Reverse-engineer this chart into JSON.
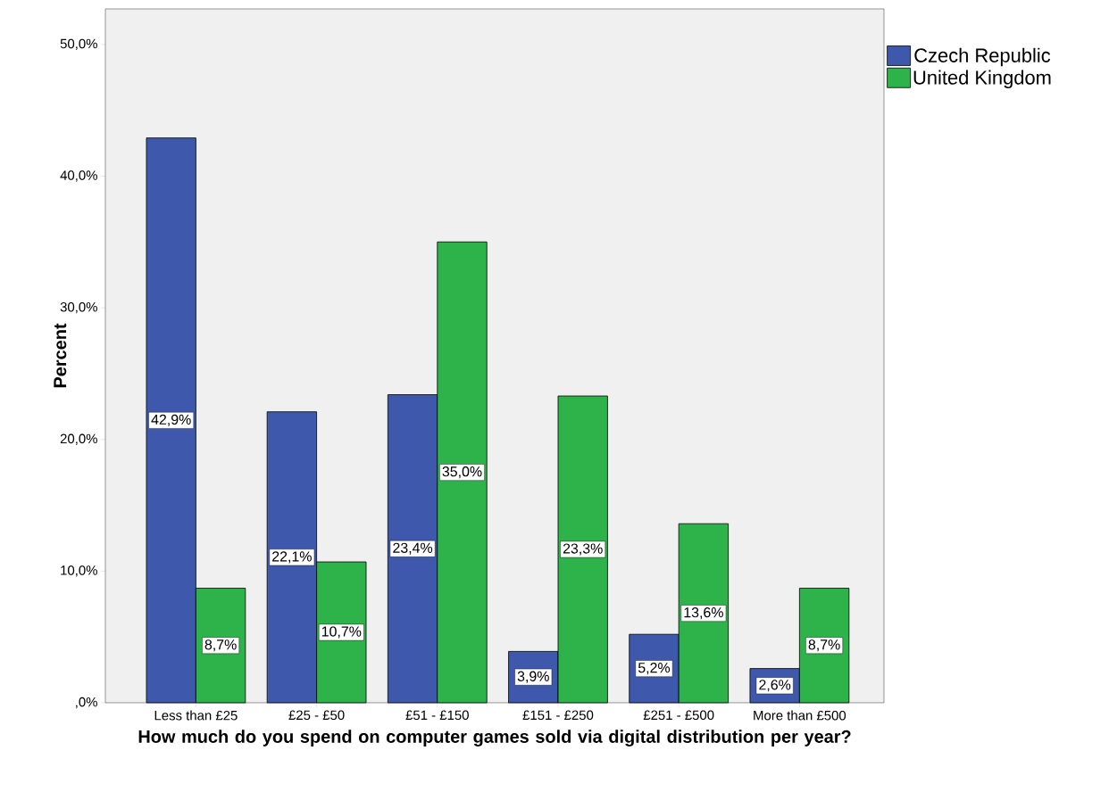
{
  "chart_data": {
    "type": "bar",
    "xlabel": "How much do you spend on computer games sold via digital distribution per year?",
    "ylabel": "Percent",
    "categories": [
      "Less than £25",
      "£25 - £50",
      "£51 - £150",
      "£151 - £250",
      "£251 - £500",
      "More than £500"
    ],
    "series": [
      {
        "name": "Czech Republic",
        "color": "#3e58ac",
        "values": [
          42.9,
          22.1,
          23.4,
          3.9,
          5.2,
          2.6
        ],
        "value_labels": [
          "42,9%",
          "22,1%",
          "23,4%",
          "3,9%",
          "5,2%",
          "2,6%"
        ]
      },
      {
        "name": "United Kingdom",
        "color": "#2db34a",
        "values": [
          8.7,
          10.7,
          35.0,
          23.3,
          13.6,
          8.7
        ],
        "value_labels": [
          "8,7%",
          "10,7%",
          "35,0%",
          "23,3%",
          "13,6%",
          "8,7%"
        ]
      }
    ],
    "ylim": [
      0,
      52.7
    ],
    "yticks": [
      {
        "value": 0,
        "label": ",0%"
      },
      {
        "value": 10,
        "label": "10,0%"
      },
      {
        "value": 20,
        "label": "20,0%"
      },
      {
        "value": 30,
        "label": "30,0%"
      },
      {
        "value": 40,
        "label": "40,0%"
      },
      {
        "value": 50,
        "label": "50,0%"
      }
    ],
    "grid": false,
    "legend": "top right"
  }
}
